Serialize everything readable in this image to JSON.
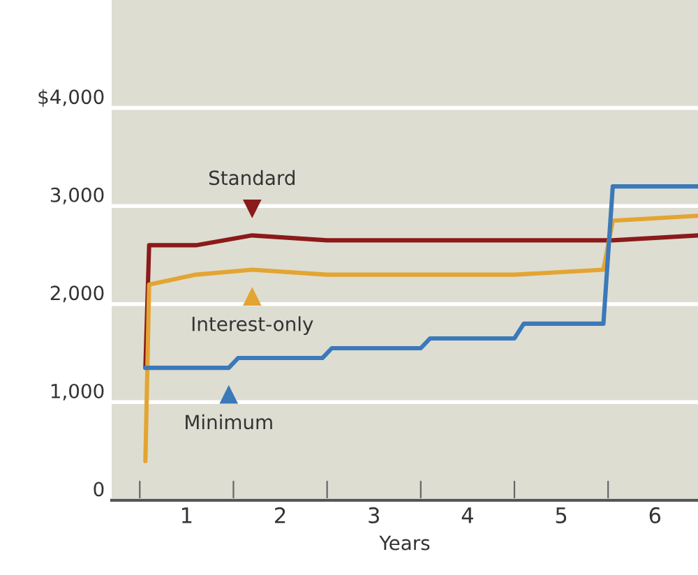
{
  "chart_data": {
    "type": "line",
    "xlabel": "Years",
    "x": [
      0.06,
      0.1,
      0.6,
      1.2,
      2.0,
      3.0,
      4.0,
      4.95,
      5.05,
      5.96
    ],
    "series": [
      {
        "name": "Standard",
        "color": "#8b1a1a",
        "values": [
          1350,
          2600,
          2600,
          2700,
          2650,
          2650,
          2650,
          2650,
          2650,
          2700
        ]
      },
      {
        "name": "Interest-only",
        "color": "#e3a532",
        "values": [
          400,
          2200,
          2300,
          2350,
          2300,
          2300,
          2300,
          2350,
          2850,
          2900
        ]
      },
      {
        "name": "Minimum",
        "color": "#3b79b9",
        "x": [
          0.06,
          0.95,
          1.05,
          1.95,
          2.05,
          3.0,
          3.1,
          4.0,
          4.1,
          4.95,
          5.05,
          5.96
        ],
        "values": [
          1350,
          1350,
          1450,
          1450,
          1550,
          1550,
          1650,
          1650,
          1800,
          1800,
          3200,
          3200
        ]
      }
    ],
    "xlim": [
      -0.3,
      5.96
    ],
    "xticks": [
      {
        "value": 0,
        "label": null
      },
      {
        "value": 0.5,
        "label": "1"
      },
      {
        "value": 1,
        "label": null
      },
      {
        "value": 1.5,
        "label": "2"
      },
      {
        "value": 2,
        "label": null
      },
      {
        "value": 2.5,
        "label": "3"
      },
      {
        "value": 3,
        "label": null
      },
      {
        "value": 3.5,
        "label": "4"
      },
      {
        "value": 4,
        "label": null
      },
      {
        "value": 4.5,
        "label": "5"
      },
      {
        "value": 5,
        "label": null
      },
      {
        "value": 5.5,
        "label": "6"
      }
    ],
    "ylim": [
      0,
      5100
    ],
    "yticks": [
      0,
      {
        "value": 1000,
        "label": "1,000"
      },
      {
        "value": 2000,
        "label": "2,000"
      },
      {
        "value": 3000,
        "label": "3,000"
      },
      {
        "value": 4000,
        "label": "$4,000"
      }
    ],
    "grid": "y",
    "legend": "left",
    "marker": "none",
    "line_style": "solid"
  }
}
